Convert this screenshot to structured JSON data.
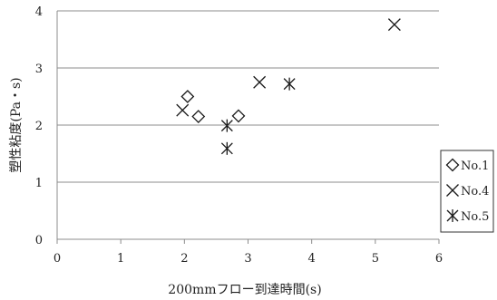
{
  "chart_data": {
    "type": "scatter",
    "title": "",
    "xlabel": "200mmフロー到達時間(s)",
    "ylabel": "塑性粘度(Pa・s)",
    "xlim": [
      0,
      6
    ],
    "ylim": [
      0,
      4
    ],
    "x_ticks": [
      "0",
      "1",
      "2",
      "3",
      "4",
      "5",
      "6"
    ],
    "y_ticks": [
      "0",
      "1",
      "2",
      "3",
      "4"
    ],
    "grid": "horizontal",
    "legend_position": "right",
    "series": [
      {
        "name": "No.1",
        "marker": "diamond",
        "points": [
          {
            "x": 2.05,
            "y": 2.5
          },
          {
            "x": 2.22,
            "y": 2.15
          },
          {
            "x": 2.85,
            "y": 2.16
          }
        ]
      },
      {
        "name": "No.4",
        "marker": "x",
        "points": [
          {
            "x": 1.97,
            "y": 2.26
          },
          {
            "x": 3.18,
            "y": 2.75
          },
          {
            "x": 5.3,
            "y": 3.76
          }
        ]
      },
      {
        "name": "No.5",
        "marker": "asterisk",
        "points": [
          {
            "x": 2.67,
            "y": 1.99
          },
          {
            "x": 2.67,
            "y": 1.59
          },
          {
            "x": 3.65,
            "y": 2.72
          }
        ]
      }
    ]
  }
}
